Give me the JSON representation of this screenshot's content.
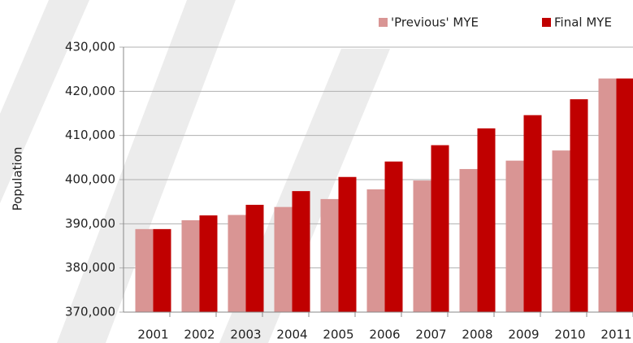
{
  "chart_data": {
    "type": "bar",
    "y_label": "Population",
    "categories": [
      "2001",
      "2002",
      "2003",
      "2004",
      "2005",
      "2006",
      "2007",
      "2008",
      "2009",
      "2010",
      "2011"
    ],
    "series": [
      {
        "name": "'Previous' MYE",
        "color": "#d99594",
        "values": [
          388800,
          390800,
          392000,
          393800,
          395600,
          397800,
          399800,
          402400,
          404300,
          406600,
          422900
        ]
      },
      {
        "name": "Final MYE",
        "color": "#c00000",
        "values": [
          388800,
          391900,
          394300,
          397400,
          400600,
          404100,
          407800,
          411600,
          414600,
          418200,
          422900
        ]
      }
    ],
    "ylim": [
      370000,
      430000
    ],
    "yticks": [
      {
        "value": 370000,
        "label": "370,000"
      },
      {
        "value": 380000,
        "label": "380,000"
      },
      {
        "value": 390000,
        "label": "390,000"
      },
      {
        "value": 400000,
        "label": "400,000"
      },
      {
        "value": 410000,
        "label": "410,000"
      },
      {
        "value": 420000,
        "label": "420,000"
      },
      {
        "value": 430000,
        "label": "430,000"
      }
    ],
    "grid": true,
    "legend": "top-right"
  }
}
